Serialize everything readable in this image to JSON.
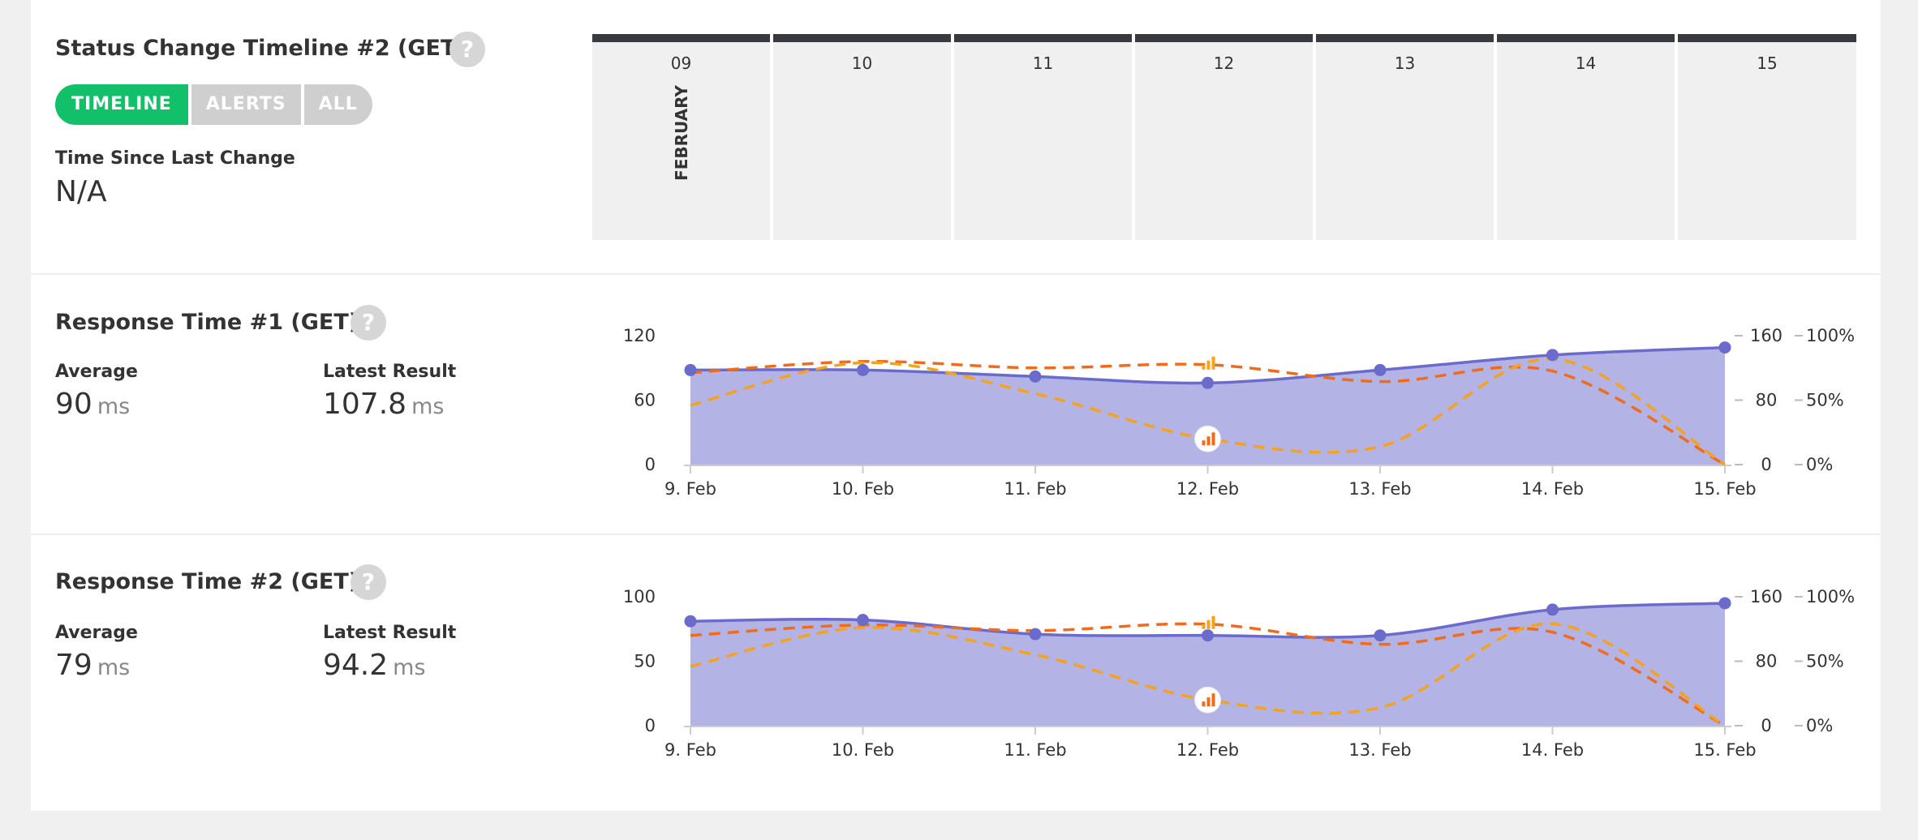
{
  "colors": {
    "accent": "#12c06a",
    "area": "#b3b3e6",
    "area_line": "#6b6bcc",
    "dash_orange": "#ef6c1e",
    "dash_yellow": "#f5a21f",
    "timeline_bar": "#393a3f"
  },
  "status_timeline": {
    "title": "Status Change Timeline #2 (GET)",
    "help_icon": "?",
    "tabs": [
      {
        "label": "TIMELINE",
        "active": true
      },
      {
        "label": "ALERTS",
        "active": false
      },
      {
        "label": "ALL",
        "active": false
      }
    ],
    "since_label": "Time Since Last Change",
    "since_value": "N/A",
    "days": [
      "09",
      "10",
      "11",
      "12",
      "13",
      "14",
      "15"
    ],
    "month": "FEBRUARY"
  },
  "response_time_1": {
    "title": "Response Time #1 (GET)",
    "help_icon": "?",
    "average_label": "Average",
    "average_value": "90",
    "average_unit": "ms",
    "latest_label": "Latest Result",
    "latest_value": "107.8",
    "latest_unit": "ms"
  },
  "response_time_2": {
    "title": "Response Time #2 (GET)",
    "help_icon": "?",
    "average_label": "Average",
    "average_value": "79",
    "average_unit": "ms",
    "latest_label": "Latest Result",
    "latest_value": "94.2",
    "latest_unit": "ms"
  },
  "chart_data": [
    {
      "type": "area",
      "categories": [
        "9. Feb",
        "10. Feb",
        "11. Feb",
        "12. Feb",
        "13. Feb",
        "14. Feb",
        "15. Feb"
      ],
      "left_axis": {
        "ticks": [
          "0",
          "60",
          "120"
        ],
        "range": [
          0,
          120
        ]
      },
      "right_axis_1": {
        "ticks": [
          "0",
          "80",
          "160"
        ],
        "range": [
          0,
          160
        ]
      },
      "right_axis_2": {
        "ticks": [
          "0%",
          "50%",
          "100%"
        ],
        "range": [
          0,
          100
        ]
      },
      "series": [
        {
          "kind": "area",
          "axis": "left",
          "values": [
            88,
            88,
            82,
            76,
            88,
            102,
            109
          ]
        },
        {
          "kind": "dashed",
          "axis": "right_axis_1",
          "values": [
            114,
            128,
            120,
            124,
            103,
            116,
            0
          ]
        },
        {
          "kind": "dashed",
          "axis": "right_axis_2",
          "values": [
            46,
            79,
            55,
            20,
            14,
            82,
            0
          ]
        }
      ],
      "annotation_icons": [
        "signal-icon",
        "signal-icon"
      ]
    },
    {
      "type": "area",
      "categories": [
        "9. Feb",
        "10. Feb",
        "11. Feb",
        "12. Feb",
        "13. Feb",
        "14. Feb",
        "15. Feb"
      ],
      "left_axis": {
        "ticks": [
          "0",
          "50",
          "100"
        ],
        "range": [
          0,
          100
        ]
      },
      "right_axis_1": {
        "ticks": [
          "0",
          "80",
          "160"
        ],
        "range": [
          0,
          160
        ]
      },
      "right_axis_2": {
        "ticks": [
          "0%",
          "50%",
          "100%"
        ],
        "range": [
          0,
          100
        ]
      },
      "series": [
        {
          "kind": "area",
          "axis": "left",
          "values": [
            81,
            82,
            71,
            70,
            70,
            90,
            95
          ]
        },
        {
          "kind": "dashed",
          "axis": "right_axis_1",
          "values": [
            112,
            125,
            118,
            126,
            101,
            116,
            0
          ]
        },
        {
          "kind": "dashed",
          "axis": "right_axis_2",
          "values": [
            46,
            76,
            55,
            20,
            14,
            79,
            0
          ]
        }
      ],
      "annotation_icons": [
        "signal-icon",
        "signal-icon"
      ]
    }
  ]
}
